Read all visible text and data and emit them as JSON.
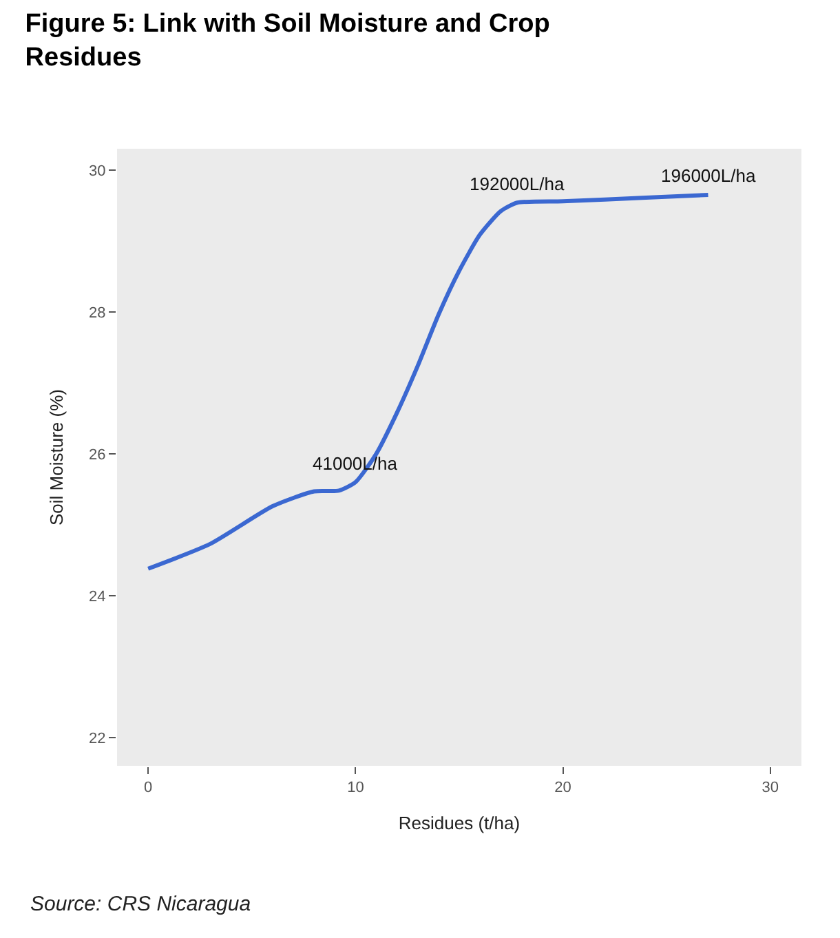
{
  "chart_data": {
    "type": "line",
    "title": "Figure 5: Link with Soil Moisture and Crop Residues",
    "xlabel": "Residues (t/ha)",
    "ylabel": "Soil Moisture (%)",
    "x": [
      0,
      3,
      6,
      8,
      9.2,
      10,
      11,
      12,
      13,
      14,
      15,
      16,
      17,
      17.8,
      20,
      24,
      27
    ],
    "series": [
      {
        "color": "#3b68d1",
        "values": [
          24.38,
          24.73,
          25.26,
          25.47,
          25.48,
          25.6,
          26.0,
          26.58,
          27.24,
          27.96,
          28.58,
          29.09,
          29.42,
          29.54,
          29.56,
          29.61,
          29.65
        ]
      }
    ],
    "xlim": [
      -1.5,
      31.5
    ],
    "ylim": [
      21.6,
      30.3
    ],
    "xticks": [
      0,
      10,
      20,
      30
    ],
    "yticks": [
      22,
      24,
      26,
      28,
      30
    ],
    "grid": false,
    "marker": "none",
    "line_style": "solid",
    "annotations": [
      {
        "text": "41000L/ha",
        "x": 10,
        "y": 25.6
      },
      {
        "text": "192000L/ha",
        "x": 17.8,
        "y": 29.54
      },
      {
        "text": "196000L/ha",
        "x": 27,
        "y": 29.65
      },
      "Source: CRS Nicaragua"
    ]
  }
}
